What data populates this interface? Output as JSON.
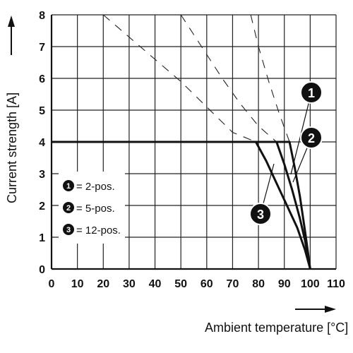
{
  "chart_data": {
    "type": "line",
    "xlabel": "Ambient temperature [°C]",
    "ylabel": "Current strength [A]",
    "xlim": [
      0,
      110
    ],
    "ylim": [
      0,
      8
    ],
    "xticks": [
      0,
      10,
      20,
      30,
      40,
      50,
      60,
      70,
      80,
      90,
      100,
      110
    ],
    "yticks": [
      0,
      1,
      2,
      3,
      4,
      5,
      6,
      7,
      8
    ],
    "grid": true,
    "legend_position": "bottom-left",
    "series": [
      {
        "marker": "1",
        "name": "= 2-pos.",
        "solid": [
          [
            0,
            4
          ],
          [
            92,
            4
          ],
          [
            94,
            3.2
          ],
          [
            96,
            2.3
          ],
          [
            98,
            1.2
          ],
          [
            100,
            0
          ]
        ],
        "dashed": [
          [
            77,
            8
          ],
          [
            80,
            7
          ],
          [
            84,
            5.9
          ],
          [
            88,
            4.9
          ],
          [
            92,
            4
          ]
        ]
      },
      {
        "marker": "2",
        "name": "= 5-pos.",
        "solid": [
          [
            0,
            4
          ],
          [
            87,
            4
          ],
          [
            90,
            3.3
          ],
          [
            93,
            2.5
          ],
          [
            96,
            1.6
          ],
          [
            98,
            0.9
          ],
          [
            100,
            0
          ]
        ],
        "dashed": [
          [
            50,
            8
          ],
          [
            58,
            7
          ],
          [
            66,
            6
          ],
          [
            73,
            5.2
          ],
          [
            80,
            4.5
          ],
          [
            87,
            4
          ]
        ]
      },
      {
        "marker": "3",
        "name": "= 12-pos.",
        "solid": [
          [
            0,
            4
          ],
          [
            79,
            4
          ],
          [
            83,
            3.4
          ],
          [
            87,
            2.7
          ],
          [
            91,
            2
          ],
          [
            95,
            1.3
          ],
          [
            98,
            0.6
          ],
          [
            100,
            0
          ]
        ],
        "dashed": [
          [
            20,
            8
          ],
          [
            30,
            7.3
          ],
          [
            40,
            6.6
          ],
          [
            50,
            5.9
          ],
          [
            60,
            5.1
          ],
          [
            70,
            4.3
          ],
          [
            79,
            4
          ]
        ]
      }
    ]
  }
}
